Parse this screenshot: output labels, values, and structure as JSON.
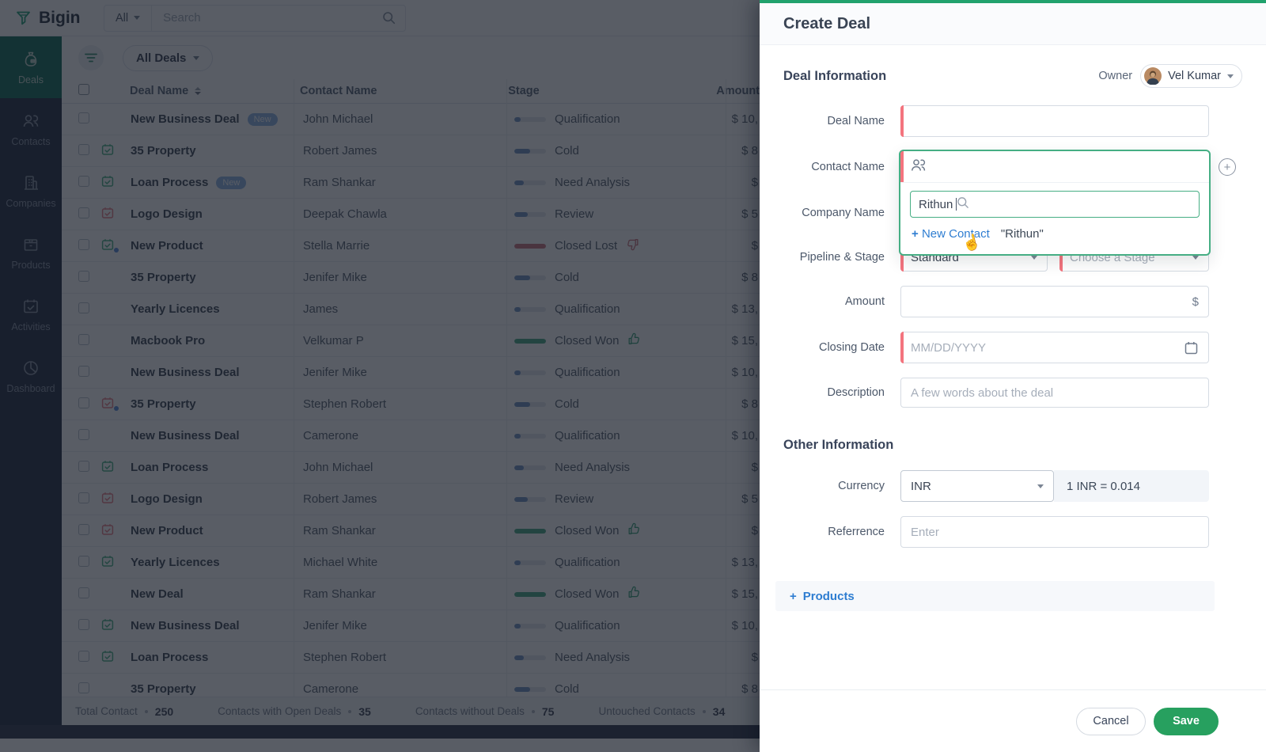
{
  "topbar": {
    "brand": "Bigin",
    "scope": "All",
    "search_placeholder": "Search"
  },
  "sidebar": {
    "items": [
      {
        "label": "Deals"
      },
      {
        "label": "Contacts"
      },
      {
        "label": "Companies"
      },
      {
        "label": "Products"
      },
      {
        "label": "Activities"
      },
      {
        "label": "Dashboard"
      }
    ]
  },
  "list": {
    "view": "All Deals",
    "columns": {
      "name": "Deal Name",
      "contact": "Contact Name",
      "stage": "Stage",
      "amount": "Amount"
    },
    "rows": [
      {
        "name": "New Business Deal",
        "badge": "New",
        "icon": null,
        "dot": false,
        "contact": "John Michael",
        "stage": "Qualification",
        "amount": "$ 10,"
      },
      {
        "name": "35 Property",
        "badge": null,
        "icon": "green",
        "dot": false,
        "contact": "Robert James",
        "stage": "Cold",
        "amount": "$ 8"
      },
      {
        "name": "Loan Process",
        "badge": "New",
        "icon": "green",
        "dot": false,
        "contact": "Ram Shankar",
        "stage": "Need Analysis",
        "amount": "$"
      },
      {
        "name": "Logo Design",
        "badge": null,
        "icon": "red",
        "dot": false,
        "contact": "Deepak Chawla",
        "stage": "Review",
        "amount": "$ 5"
      },
      {
        "name": "New Product",
        "badge": null,
        "icon": "green",
        "dot": true,
        "contact": "Stella Marrie",
        "stage": "Closed Lost",
        "amount": "$"
      },
      {
        "name": "35 Property",
        "badge": null,
        "icon": null,
        "dot": false,
        "contact": "Jenifer Mike",
        "stage": "Cold",
        "amount": "$ 8"
      },
      {
        "name": "Yearly Licences",
        "badge": null,
        "icon": null,
        "dot": false,
        "contact": "James",
        "stage": "Qualification",
        "amount": "$ 13,"
      },
      {
        "name": "Macbook Pro",
        "badge": null,
        "icon": null,
        "dot": false,
        "contact": "Velkumar P",
        "stage": "Closed Won",
        "amount": "$ 15,"
      },
      {
        "name": "New Business Deal",
        "badge": null,
        "icon": null,
        "dot": false,
        "contact": "Jenifer Mike",
        "stage": "Qualification",
        "amount": "$ 10,"
      },
      {
        "name": "35 Property",
        "badge": null,
        "icon": "red",
        "dot": true,
        "contact": "Stephen Robert",
        "stage": "Cold",
        "amount": "$ 8"
      },
      {
        "name": "New Business Deal",
        "badge": null,
        "icon": null,
        "dot": false,
        "contact": "Camerone",
        "stage": "Qualification",
        "amount": "$ 10,"
      },
      {
        "name": "Loan Process",
        "badge": null,
        "icon": "green",
        "dot": false,
        "contact": "John Michael",
        "stage": "Need Analysis",
        "amount": "$"
      },
      {
        "name": "Logo Design",
        "badge": null,
        "icon": "red",
        "dot": false,
        "contact": "Robert James",
        "stage": "Review",
        "amount": "$ 5"
      },
      {
        "name": "New Product",
        "badge": null,
        "icon": "red",
        "dot": false,
        "contact": "Ram Shankar",
        "stage": "Closed Won",
        "amount": "$"
      },
      {
        "name": "Yearly Licences",
        "badge": null,
        "icon": "green",
        "dot": false,
        "contact": "Michael White",
        "stage": "Qualification",
        "amount": "$ 13,"
      },
      {
        "name": "New Deal",
        "badge": null,
        "icon": null,
        "dot": false,
        "contact": "Ram Shankar",
        "stage": "Closed Won",
        "amount": "$ 15,"
      },
      {
        "name": "New Business Deal",
        "badge": null,
        "icon": "green",
        "dot": false,
        "contact": "Jenifer Mike",
        "stage": "Qualification",
        "amount": "$ 10,"
      },
      {
        "name": "Loan Process",
        "badge": null,
        "icon": "green",
        "dot": false,
        "contact": "Stephen Robert",
        "stage": "Need Analysis",
        "amount": "$"
      },
      {
        "name": "35 Property",
        "badge": null,
        "icon": null,
        "dot": false,
        "contact": "Camerone",
        "stage": "Cold",
        "amount": "$ 8"
      }
    ],
    "stage_meta": {
      "Qualification": {
        "pct": 20,
        "kind": "open"
      },
      "Cold": {
        "pct": 50,
        "kind": "open"
      },
      "Need Analysis": {
        "pct": 30,
        "kind": "open"
      },
      "Review": {
        "pct": 42,
        "kind": "open"
      },
      "Closed Won": {
        "pct": 100,
        "kind": "won"
      },
      "Closed Lost": {
        "pct": 100,
        "kind": "lost"
      }
    },
    "stats": [
      {
        "label": "Total Contact",
        "value": "250"
      },
      {
        "label": "Contacts with Open Deals",
        "value": "35"
      },
      {
        "label": "Contacts without Deals",
        "value": "75"
      },
      {
        "label": "Untouched Contacts",
        "value": "34"
      }
    ]
  },
  "panel": {
    "title": "Create Deal",
    "owner_label": "Owner",
    "owner_name": "Vel Kumar",
    "section_deal": "Deal Information",
    "section_other": "Other Information",
    "labels": {
      "deal_name": "Deal Name",
      "contact_name": "Contact Name",
      "company_name": "Company Name",
      "pipeline_stage": "Pipeline & Stage",
      "amount": "Amount",
      "closing_date": "Closing Date",
      "description": "Description",
      "currency": "Currency",
      "reference": "Referrence"
    },
    "values": {
      "pipeline": "Standard",
      "stage_placeholder": "Choose a Stage",
      "amount_symbol": "$",
      "closing_placeholder": "MM/DD/YYYY",
      "description_placeholder": "A few words about the deal",
      "currency": "INR",
      "currency_rate": "1 INR  =  0.014",
      "reference_placeholder": "Enter"
    },
    "contact_dropdown": {
      "query": "Rithun",
      "new_contact_plus": "+",
      "new_contact_label": "New Contact",
      "new_contact_value": "\"Rithun\""
    },
    "products_plus": "+",
    "products_link": "Products",
    "cancel": "Cancel",
    "save": "Save"
  },
  "colors": {
    "accent_green": "#21a26d",
    "brand_teal": "#2aa57c",
    "link_blue": "#2e7dd1",
    "required_red": "#f4747e",
    "stage_open": "#7494c4",
    "stage_won": "#4cab85",
    "stage_lost": "#cd7680",
    "badge_blue": "#8fb5e4"
  }
}
